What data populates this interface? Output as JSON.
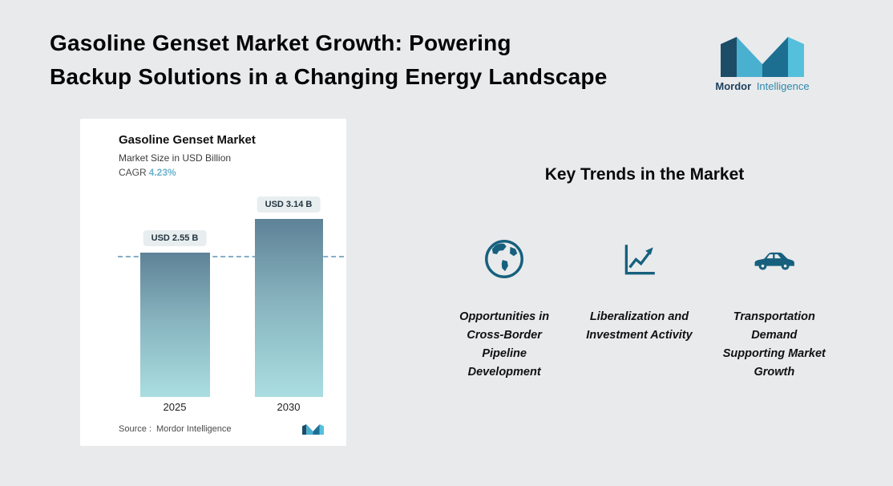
{
  "header": {
    "title_lines": [
      "Gasoline Genset Market Growth: Powering",
      "Backup Solutions in a Changing Energy Landscape"
    ]
  },
  "brand": {
    "name_bold": "Mordor",
    "name_light": "Intelligence"
  },
  "chart": {
    "title": "Gasoline Genset Market",
    "subtitle": "Market Size in USD Billion",
    "cagr_label": "CAGR",
    "cagr_value": "4.23%",
    "source_label": "Source :",
    "source_value": "Mordor Intelligence"
  },
  "chart_data": {
    "type": "bar",
    "title": "Gasoline Genset Market",
    "ylabel": "Market Size in USD Billion",
    "categories": [
      "2025",
      "2030"
    ],
    "values": [
      2.55,
      3.14
    ],
    "value_labels": [
      "USD 2.55 B",
      "USD 3.14 B"
    ],
    "unit": "USD Billion",
    "cagr_percent": 4.23,
    "ylim": [
      0,
      3.5
    ],
    "grid": false,
    "annotations": [
      "dashed horizontal reference line at 2025 value"
    ]
  },
  "trends": {
    "heading": "Key Trends in the Market",
    "items": [
      {
        "icon": "globe-icon",
        "label": "Opportunities in Cross-Border Pipeline Development"
      },
      {
        "icon": "growth-chart-icon",
        "label": "Liberalization and Investment Activity"
      },
      {
        "icon": "car-icon",
        "label": "Transportation Demand Supporting Market Growth"
      }
    ]
  },
  "colors": {
    "page_bg": "#e9eaec",
    "card_bg": "#ffffff",
    "bar_top": "#5e8297",
    "bar_bottom": "#aadee1",
    "accent_teal": "#16607e",
    "cagr_value": "#6cb2cf",
    "dashed_line": "#85aec9"
  }
}
